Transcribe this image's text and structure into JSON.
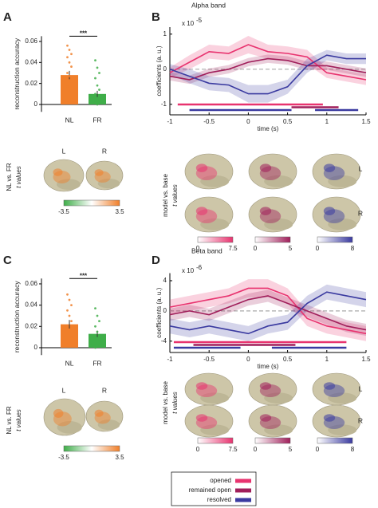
{
  "chart_data": [
    {
      "type": "bar",
      "panel": "A",
      "ylabel": "reconstruction accuracy",
      "categories": [
        "NL",
        "FR"
      ],
      "values": [
        0.028,
        0.01
      ],
      "errors": [
        0.004,
        0.003
      ],
      "colors": [
        "#f07f2a",
        "#3fae49"
      ],
      "points": [
        [
          0.056,
          0.052,
          0.048,
          0.045,
          0.04,
          0.036,
          0.03,
          0.027,
          0.022,
          0.017,
          0.012,
          0.005,
          0.002
        ],
        [
          0.042,
          0.035,
          0.03,
          0.025,
          0.018,
          0.014,
          0.01,
          0.006,
          0.004,
          0.002,
          0
        ]
      ],
      "significance": "***",
      "ylim": [
        -0.007,
        0.065
      ],
      "yticks": [
        0,
        0.02,
        0.04,
        0.06
      ]
    },
    {
      "type": "line",
      "panel": "B",
      "title": "Alpha band",
      "xlabel": "time (s)",
      "ylabel": "coefficients (a. u.)",
      "y_multiplier": "x 10",
      "y_exponent": "-5",
      "x": [
        -1,
        -0.75,
        -0.5,
        -0.25,
        0,
        0.25,
        0.5,
        0.75,
        1,
        1.25,
        1.5
      ],
      "series": [
        {
          "name": "opened",
          "color": "#e8336f",
          "values": [
            -0.1,
            0.2,
            0.5,
            0.45,
            0.7,
            0.5,
            0.45,
            0.35,
            -0.1,
            -0.2,
            -0.3
          ],
          "errors": [
            0.15,
            0.2,
            0.2,
            0.2,
            0.25,
            0.2,
            0.2,
            0.2,
            0.15,
            0.15,
            0.15
          ],
          "significant": [
            [
              -0.9,
              0.95
            ]
          ]
        },
        {
          "name": "remained open",
          "color": "#a01e5a",
          "values": [
            -0.2,
            -0.3,
            -0.1,
            0,
            0.2,
            0.3,
            0.25,
            0.1,
            0.1,
            0,
            -0.1
          ],
          "errors": [
            0.12,
            0.12,
            0.12,
            0.12,
            0.12,
            0.12,
            0.12,
            0.12,
            0.12,
            0.12,
            0.12
          ],
          "significant": [
            [
              0.55,
              1.15
            ]
          ]
        },
        {
          "name": "resolved",
          "color": "#3a3aa0",
          "values": [
            0,
            -0.2,
            -0.4,
            -0.45,
            -0.7,
            -0.7,
            -0.5,
            0.1,
            0.4,
            0.3,
            0.3
          ],
          "errors": [
            0.15,
            0.2,
            0.2,
            0.2,
            0.25,
            0.25,
            0.2,
            0.2,
            0.15,
            0.15,
            0.15
          ],
          "significant": [
            [
              -0.75,
              0.55
            ],
            [
              0.85,
              1.4
            ]
          ]
        }
      ],
      "xlim": [
        -1,
        1.5
      ],
      "xticks": [
        -1,
        -0.5,
        0,
        0.5,
        1,
        1.5
      ],
      "ylim": [
        -1.3,
        1.2
      ],
      "yticks": [
        -1,
        0,
        1
      ]
    },
    {
      "type": "bar",
      "panel": "C",
      "ylabel": "reconstruction accuracy",
      "categories": [
        "NL",
        "FR"
      ],
      "values": [
        0.022,
        0.013
      ],
      "errors": [
        0.004,
        0.003
      ],
      "colors": [
        "#f07f2a",
        "#3fae49"
      ],
      "points": [
        [
          0.05,
          0.045,
          0.04,
          0.035,
          0.03,
          0.025,
          0.02,
          0.015,
          0.01,
          0.005
        ],
        [
          0.037,
          0.03,
          0.025,
          0.02,
          0.015,
          0.01,
          0.008,
          0.005,
          0.003,
          0
        ]
      ],
      "significance": "***",
      "ylim": [
        -0.007,
        0.065
      ],
      "yticks": [
        0,
        0.02,
        0.04,
        0.06
      ]
    },
    {
      "type": "line",
      "panel": "D",
      "title": "Beta band",
      "xlabel": "time (s)",
      "ylabel": "coefficients (a. u.)",
      "y_multiplier": "x 10",
      "y_exponent": "-6",
      "x": [
        -1,
        -0.75,
        -0.5,
        -0.25,
        0,
        0.25,
        0.5,
        0.75,
        1,
        1.25,
        1.5
      ],
      "series": [
        {
          "name": "opened",
          "color": "#e8336f",
          "values": [
            0.5,
            1,
            1.5,
            2,
            3,
            3,
            2,
            -1,
            -2,
            -2.5,
            -3
          ],
          "errors": [
            1,
            1,
            1,
            1,
            1.2,
            1.2,
            1,
            1,
            1,
            1,
            1
          ],
          "significant": [
            [
              -0.95,
              1.25
            ]
          ]
        },
        {
          "name": "remained open",
          "color": "#a01e5a",
          "values": [
            -0.5,
            0,
            -0.5,
            0.5,
            1.5,
            2,
            1,
            0,
            -1,
            -2,
            -2.5
          ],
          "errors": [
            0.8,
            0.8,
            0.8,
            0.8,
            0.8,
            0.8,
            0.8,
            0.8,
            0.8,
            0.8,
            0.8
          ],
          "significant": [
            [
              -0.7,
              0.6
            ]
          ]
        },
        {
          "name": "resolved",
          "color": "#3a3aa0",
          "values": [
            -2,
            -2.5,
            -2,
            -2.5,
            -3,
            -2,
            -1.5,
            1,
            2.5,
            2,
            1.5
          ],
          "errors": [
            1,
            1,
            1,
            1,
            1,
            1,
            1,
            1,
            1,
            1,
            1
          ],
          "significant": [
            [
              -0.95,
              -0.1
            ],
            [
              0.3,
              1.25
            ]
          ]
        }
      ],
      "xlim": [
        -1,
        1.5
      ],
      "xticks": [
        -1,
        -0.5,
        0,
        0.5,
        1,
        1.5
      ],
      "ylim": [
        -5.5,
        5
      ],
      "yticks": [
        -4,
        0,
        4
      ]
    }
  ],
  "brain_maps": [
    {
      "ylabel": [
        "NL vs. FR",
        "t values"
      ],
      "hemispheres": [
        "L",
        "R"
      ],
      "colorbars": [
        {
          "ticks": [
            -3.5,
            3.5
          ],
          "colors": [
            "#3fae49",
            "#ffffff",
            "#f07f2a"
          ]
        }
      ]
    },
    {
      "ylabel": [
        "model vs. base",
        "t values"
      ],
      "hemispheres": [
        "L",
        "R"
      ],
      "colorbars": [
        {
          "ticks": [
            0,
            7.5
          ],
          "colors": [
            "#ffffff",
            "#e8336f"
          ]
        },
        {
          "ticks": [
            0,
            5
          ],
          "colors": [
            "#ffffff",
            "#a01e5a"
          ]
        },
        {
          "ticks": [
            0,
            8
          ],
          "colors": [
            "#ffffff",
            "#3a3aa0"
          ]
        }
      ]
    },
    {
      "ylabel": [
        "NL vs. FR",
        "t values"
      ],
      "hemispheres": [
        "L",
        "R"
      ],
      "colorbars": [
        {
          "ticks": [
            -3.5,
            3.5
          ],
          "colors": [
            "#3fae49",
            "#ffffff",
            "#f07f2a"
          ]
        }
      ]
    },
    {
      "ylabel": [
        "model vs. base",
        "t values"
      ],
      "hemispheres": [
        "L",
        "R"
      ],
      "colorbars": [
        {
          "ticks": [
            0,
            7.5
          ],
          "colors": [
            "#ffffff",
            "#e8336f"
          ]
        },
        {
          "ticks": [
            0,
            5
          ],
          "colors": [
            "#ffffff",
            "#a01e5a"
          ]
        },
        {
          "ticks": [
            0,
            8
          ],
          "colors": [
            "#ffffff",
            "#3a3aa0"
          ]
        }
      ]
    }
  ]
}
